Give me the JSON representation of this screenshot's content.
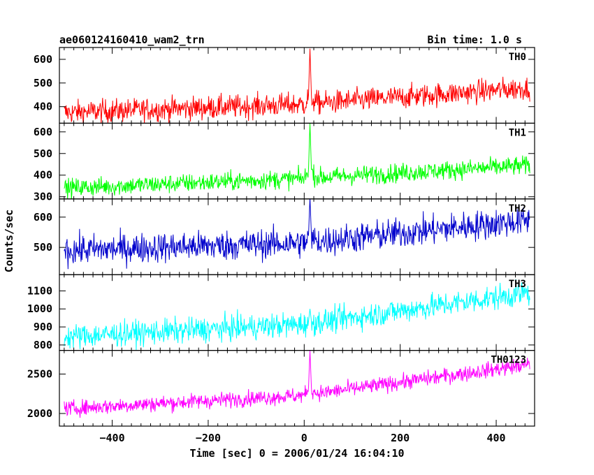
{
  "header": {
    "title": "ae060124160410_wam2_trn",
    "bin_time": "Bin time: 1.0 s"
  },
  "chart_data": {
    "type": "line",
    "xlabel": "Time [sec] 0 = 2006/01/24 16:04:10",
    "ylabel": "Counts/sec",
    "xlim": [
      -510,
      480
    ],
    "x_ticks": [
      -400,
      -200,
      0,
      200,
      400
    ],
    "x_tick_labels": [
      "−400",
      "−200",
      "0",
      "200",
      "400"
    ],
    "x_range": [
      -500,
      470
    ],
    "burst_time": 12,
    "panels": [
      {
        "name": "TH0",
        "color": "#ff0000",
        "ylim": [
          330,
          650
        ],
        "y_ticks": [
          400,
          500,
          600
        ],
        "trend": [
          {
            "x": -500,
            "y": 375
          },
          {
            "x": 0,
            "y": 410
          },
          {
            "x": 470,
            "y": 480
          }
        ],
        "noise": 25,
        "peak": 645
      },
      {
        "name": "TH1",
        "color": "#00ff00",
        "ylim": [
          290,
          640
        ],
        "y_ticks": [
          300,
          400,
          500,
          600
        ],
        "trend": [
          {
            "x": -500,
            "y": 340
          },
          {
            "x": 0,
            "y": 385
          },
          {
            "x": 470,
            "y": 445
          }
        ],
        "noise": 22,
        "peak": 640
      },
      {
        "name": "TH2",
        "color": "#0000cc",
        "ylim": [
          410,
          660
        ],
        "y_ticks": [
          500,
          600
        ],
        "trend": [
          {
            "x": -500,
            "y": 490
          },
          {
            "x": 0,
            "y": 515
          },
          {
            "x": 470,
            "y": 590
          }
        ],
        "noise": 25,
        "peak": 665
      },
      {
        "name": "TH3",
        "color": "#00ffff",
        "ylim": [
          770,
          1190
        ],
        "y_ticks": [
          800,
          900,
          1000,
          1100
        ],
        "trend": [
          {
            "x": -500,
            "y": 845
          },
          {
            "x": 0,
            "y": 915
          },
          {
            "x": 470,
            "y": 1090
          }
        ],
        "noise": 35,
        "peak": 1000
      },
      {
        "name": "TH0123",
        "color": "#ff00ff",
        "ylim": [
          1840,
          2800
        ],
        "y_ticks": [
          2000,
          2500
        ],
        "trend": [
          {
            "x": -500,
            "y": 2060
          },
          {
            "x": 0,
            "y": 2230
          },
          {
            "x": 470,
            "y": 2620
          }
        ],
        "noise": 50,
        "peak": 2800
      }
    ]
  }
}
